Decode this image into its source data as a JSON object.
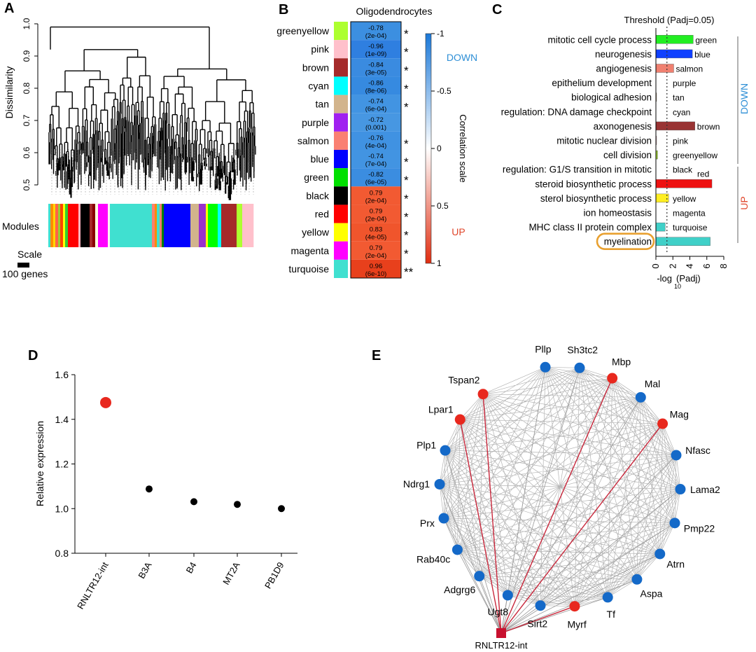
{
  "panel_labels": [
    "A",
    "B",
    "C",
    "D",
    "E"
  ],
  "colors": {
    "down": "#2e8fd6",
    "up": "#e0452a",
    "orange_highlight": "#e8a030",
    "dot_red": "#e8281e",
    "dot_blue": "#1469c8",
    "network_edge": "#9a9a9a",
    "network_highlight": "#c8283c"
  },
  "chart_data": [
    {
      "panel": "A",
      "type": "dendrogram",
      "ylabel": "Dissimilarity",
      "ylim": [
        0.45,
        1.0
      ],
      "yticks": [
        "1.0",
        "0.9",
        "0.8",
        "0.7",
        "0.6",
        "0.5"
      ],
      "modules_label": "Modules",
      "scale_label": "Scale",
      "scale_unit": "100 genes",
      "module_bar": [
        {
          "color": "#40e0d0",
          "w": 3
        },
        {
          "color": "#ff8c00",
          "w": 4
        },
        {
          "color": "#ffd700",
          "w": 3
        },
        {
          "color": "#ff6347",
          "w": 4
        },
        {
          "color": "#9acd32",
          "w": 3
        },
        {
          "color": "#ff4500",
          "w": 4
        },
        {
          "color": "#ffff00",
          "w": 3
        },
        {
          "color": "#32cd32",
          "w": 4
        },
        {
          "color": "#ff0000",
          "w": 15
        },
        {
          "color": "#ffb6c1",
          "w": 3
        },
        {
          "color": "#000000",
          "w": 13
        },
        {
          "color": "#a52a2a",
          "w": 4
        },
        {
          "color": "#8b0000",
          "w": 4
        },
        {
          "color": "#ffffe0",
          "w": 4
        },
        {
          "color": "#ff00ff",
          "w": 14
        },
        {
          "color": "#fff0f5",
          "w": 3
        },
        {
          "color": "#40e0d0",
          "w": 60
        },
        {
          "color": "#fa8072",
          "w": 4
        },
        {
          "color": "#ff8c00",
          "w": 3
        },
        {
          "color": "#40e0d0",
          "w": 4
        },
        {
          "color": "#fa8072",
          "w": 3
        },
        {
          "color": "#008000",
          "w": 3
        },
        {
          "color": "#0000ff",
          "w": 38
        },
        {
          "color": "#d2b48c",
          "w": 12
        },
        {
          "color": "#9932cc",
          "w": 10
        },
        {
          "color": "#ffff00",
          "w": 3
        },
        {
          "color": "#00ff00",
          "w": 14
        },
        {
          "color": "#00ffff",
          "w": 5
        },
        {
          "color": "#a52a2a",
          "w": 22
        },
        {
          "color": "#adff2f",
          "w": 8
        },
        {
          "color": "#ffc0cb",
          "w": 16
        }
      ]
    },
    {
      "panel": "B",
      "type": "heatmap",
      "title": "Oligodendrocytes",
      "colorbar_label": "Correlation scale",
      "colorbar_ticks": [
        "-1",
        "-0.5",
        "0",
        "0.5",
        "1"
      ],
      "down_label": "DOWN",
      "up_label": "UP",
      "rows": [
        {
          "module": "greenyellow",
          "swatch": "#adff2f",
          "r": "-0.78",
          "p": "(2e-04)",
          "sig": "*",
          "fill": "#3c8fe0"
        },
        {
          "module": "pink",
          "swatch": "#ffc0cb",
          "r": "-0.96",
          "p": "(1e-09)",
          "sig": "*",
          "fill": "#2f7fe0"
        },
        {
          "module": "brown",
          "swatch": "#a52a2a",
          "r": "-0.84",
          "p": "(3e-05)",
          "sig": "*",
          "fill": "#3a8be0"
        },
        {
          "module": "cyan",
          "swatch": "#00ffff",
          "r": "-0.86",
          "p": "(8e-06)",
          "sig": "*",
          "fill": "#368ae0"
        },
        {
          "module": "tan",
          "swatch": "#d2b48c",
          "r": "-0.74",
          "p": "(6e-04)",
          "sig": "*",
          "fill": "#4294e2"
        },
        {
          "module": "purple",
          "swatch": "#a020f0",
          "r": "-0.72",
          "p": "(0.001)",
          "sig": "",
          "fill": "#4797e2"
        },
        {
          "module": "salmon",
          "swatch": "#fa8072",
          "r": "-0.76",
          "p": "(4e-04)",
          "sig": "*",
          "fill": "#4092e2"
        },
        {
          "module": "blue",
          "swatch": "#0000ff",
          "r": "-0.74",
          "p": "(7e-04)",
          "sig": "*",
          "fill": "#4294e2"
        },
        {
          "module": "green",
          "swatch": "#00e000",
          "r": "-0.82",
          "p": "(6e-05)",
          "sig": "*",
          "fill": "#3b8de0"
        },
        {
          "module": "black",
          "swatch": "#000000",
          "r": "0.79",
          "p": "(2e-04)",
          "sig": "*",
          "fill": "#f25a32"
        },
        {
          "module": "red",
          "swatch": "#ff0000",
          "r": "0.79",
          "p": "(2e-04)",
          "sig": "*",
          "fill": "#f25a32"
        },
        {
          "module": "yellow",
          "swatch": "#ffff00",
          "r": "0.83",
          "p": "(4e-05)",
          "sig": "*",
          "fill": "#f0552c"
        },
        {
          "module": "magenta",
          "swatch": "#ff00ff",
          "r": "0.79",
          "p": "(2e-04)",
          "sig": "*",
          "fill": "#f25a32"
        },
        {
          "module": "turquoise",
          "swatch": "#40e0d0",
          "r": "0.96",
          "p": "(6e-10)",
          "sig": "**",
          "fill": "#e8401c"
        }
      ]
    },
    {
      "panel": "C",
      "type": "bar",
      "orientation": "horizontal",
      "threshold_label": "Threshold (Padj=0.05)",
      "threshold_value": 1.3,
      "xlabel": "-log",
      "xlabel_sub": "10",
      "xlabel_tail": "(Padj)",
      "xlim": [
        0,
        8
      ],
      "xticks": [
        "0",
        "2",
        "4",
        "6",
        "8"
      ],
      "down_label": "DOWN",
      "up_label": "UP",
      "terms": [
        {
          "term": "mitotic cell cycle process",
          "module": "green",
          "value": 4.4,
          "color": "#22ee22"
        },
        {
          "term": "neurogenesis",
          "module": "blue",
          "value": 4.3,
          "color": "#1040ff"
        },
        {
          "term": "angiogenesis",
          "module": "salmon",
          "value": 2.1,
          "color": "#f08070"
        },
        {
          "term": "epithelium development",
          "module": "purple",
          "value": 0.0,
          "color": "#a020f0"
        },
        {
          "term": "biological adhesion",
          "module": "tan",
          "value": 0.05,
          "color": "#d2b48c"
        },
        {
          "term": "regulation: DNA damage checkpoint",
          "module": "cyan",
          "value": 0.0,
          "color": "#00ffff"
        },
        {
          "term": "axonogenesis",
          "module": "brown",
          "value": 4.6,
          "color": "#993333"
        },
        {
          "term": "mitotic nuclear division",
          "module": "pink",
          "value": 0.05,
          "color": "#ffc0cb"
        },
        {
          "term": "cell division",
          "module": "greenyellow",
          "value": 0.2,
          "color": "#9acd32"
        },
        {
          "term": "regulation: G1/S transition in mitotic",
          "module": "black",
          "value": 0.0,
          "color": "#000000"
        },
        {
          "term": "steroid biosynthetic process",
          "module": "red",
          "value": 6.6,
          "color": "#ee1111"
        },
        {
          "term": "sterol biosynthetic process",
          "module": "yellow",
          "value": 1.5,
          "color": "#ffee22"
        },
        {
          "term": "ion homeostasis",
          "module": "magenta",
          "value": 0.0,
          "color": "#ff00ff"
        },
        {
          "term": "MHC class II protein complex",
          "module": "turquoise",
          "value": 1.1,
          "color": "#40d0c8"
        },
        {
          "term": "myelination",
          "module": "",
          "value": 6.4,
          "color": "#40d0c8"
        }
      ],
      "highlight_term": "myelination"
    },
    {
      "panel": "D",
      "type": "scatter",
      "ylabel": "Relative expression",
      "ylim": [
        0.8,
        1.6
      ],
      "yticks": [
        "1.6",
        "1.4",
        "1.2",
        "1.0",
        "0.8"
      ],
      "categories": [
        "RNLTR12-int",
        "B3A",
        "B4",
        "MT2A",
        "PB1D9"
      ],
      "values": [
        1.475,
        1.088,
        1.031,
        1.019,
        1.0
      ],
      "point_colors": [
        "#e8281e",
        "#000000",
        "#000000",
        "#000000",
        "#000000"
      ]
    },
    {
      "panel": "E",
      "type": "network",
      "hub": "RNLTR12-int",
      "nodes": [
        {
          "label": "Pllp",
          "color": "blue"
        },
        {
          "label": "Sh3tc2",
          "color": "blue"
        },
        {
          "label": "Mbp",
          "color": "red"
        },
        {
          "label": "Mal",
          "color": "blue"
        },
        {
          "label": "Mag",
          "color": "red"
        },
        {
          "label": "Nfasc",
          "color": "blue"
        },
        {
          "label": "Lama2",
          "color": "blue"
        },
        {
          "label": "Pmp22",
          "color": "blue"
        },
        {
          "label": "Atrn",
          "color": "blue"
        },
        {
          "label": "Aspa",
          "color": "blue"
        },
        {
          "label": "Tf",
          "color": "blue"
        },
        {
          "label": "Myrf",
          "color": "red"
        },
        {
          "label": "Sirt2",
          "color": "blue"
        },
        {
          "label": "Ugt8",
          "color": "blue"
        },
        {
          "label": "Adgrg6",
          "color": "blue"
        },
        {
          "label": "Rab40c",
          "color": "blue"
        },
        {
          "label": "Prx",
          "color": "blue"
        },
        {
          "label": "Ndrg1",
          "color": "blue"
        },
        {
          "label": "Plp1",
          "color": "blue"
        },
        {
          "label": "Lpar1",
          "color": "red"
        },
        {
          "label": "Tspan2",
          "color": "red"
        }
      ]
    }
  ]
}
